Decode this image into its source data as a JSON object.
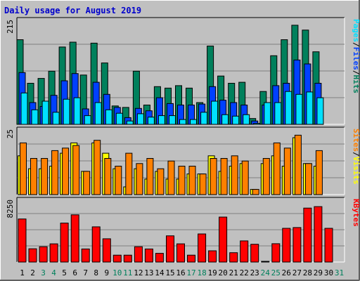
{
  "chart_data": {
    "type": "bar",
    "title": "Daily usage for August 2019",
    "colors": {
      "page_bg": "#c0c0c0",
      "plot_bg": "#c0c0c0",
      "hits": "#00805c",
      "files": "#0040ff",
      "pages": "#00e0ff",
      "visits": "#ffff00",
      "sites": "#ff8000",
      "kbytes": "#ff0000",
      "weekend_label": "#00805c",
      "weekday_label": "#000000"
    },
    "days": [
      "1",
      "2",
      "3",
      "4",
      "5",
      "6",
      "7",
      "8",
      "9",
      "10",
      "11",
      "12",
      "13",
      "14",
      "15",
      "16",
      "17",
      "18",
      "19",
      "20",
      "21",
      "22",
      "23",
      "24",
      "25",
      "26",
      "27",
      "28",
      "29",
      "30",
      "31"
    ],
    "weekend_days": [
      "3",
      "4",
      "10",
      "11",
      "17",
      "18",
      "24",
      "25",
      "31"
    ],
    "panels": [
      {
        "id": "hits",
        "ymax_label": "215",
        "ymax": 215,
        "legend": [
          {
            "text": "Hits",
            "color": "#00805c"
          },
          {
            "text": "/",
            "color": "#000000"
          },
          {
            "text": "Files",
            "color": "#0040ff"
          },
          {
            "text": "/",
            "color": "#000000"
          },
          {
            "text": "Pages",
            "color": "#00e0ff"
          }
        ],
        "series": [
          {
            "name": "Hits",
            "color": "#00805c",
            "values": [
              175,
              85,
              95,
              110,
              160,
              170,
              102,
              168,
              127,
              38,
              35,
              110,
              40,
              78,
              75,
              80,
              75,
              45,
              162,
              100,
              85,
              87,
              12,
              68,
              142,
              175,
              205,
              195,
              150,
              null,
              null
            ]
          },
          {
            "name": "Files",
            "color": "#0040ff",
            "values": [
              107,
              45,
              37,
              60,
              90,
              105,
              32,
              87,
              62,
              35,
              14,
              33,
              28,
              55,
              43,
              40,
              40,
              42,
              78,
              50,
              45,
              40,
              7,
              40,
              80,
              85,
              133,
              125,
              85,
              null,
              null
            ]
          },
          {
            "name": "Pages",
            "color": "#00e0ff",
            "values": [
              65,
              30,
              48,
              25,
              52,
              55,
              18,
              45,
              30,
              23,
              7,
              22,
              15,
              18,
              18,
              10,
              10,
              25,
              48,
              20,
              17,
              20,
              2,
              45,
              45,
              68,
              62,
              67,
              55,
              null,
              null
            ]
          }
        ]
      },
      {
        "id": "visits",
        "ymax_label": "25",
        "ymax": 25,
        "legend": [
          {
            "text": "Visits",
            "color": "#ffff00"
          },
          {
            "text": "/",
            "color": "#000000"
          },
          {
            "text": "Sites",
            "color": "#ff8000"
          }
        ],
        "series": [
          {
            "name": "Visits",
            "color": "#ffff00",
            "values": [
              15,
              10,
              10,
              11,
              16,
              20,
              9,
              20,
              16,
              10,
              3,
              10,
              6,
              9,
              6,
              6,
              8,
              8,
              15,
              9,
              11,
              12,
              2,
              12,
              15,
              11,
              22,
              12,
              11,
              null,
              null
            ]
          },
          {
            "name": "Sites",
            "color": "#ff8000",
            "values": [
              20,
              14,
              14,
              17,
              18,
              19,
              9,
              21,
              14,
              11,
              16,
              12,
              14,
              10,
              13,
              11,
              11,
              8,
              14,
              14,
              15,
              13,
              2,
              14,
              20,
              18,
              23,
              12,
              17,
              null,
              null
            ]
          }
        ]
      },
      {
        "id": "kbytes",
        "ymax_label": "8250",
        "ymax": 8250,
        "legend": [
          {
            "text": "KBytes",
            "color": "#ff0000"
          }
        ],
        "series": [
          {
            "name": "KBytes",
            "color": "#ff0000",
            "values": [
              5750,
              1770,
              2040,
              2430,
              5200,
              6300,
              1740,
              4700,
              3100,
              920,
              920,
              2040,
              1740,
              1160,
              3500,
              2430,
              920,
              3750,
              1500,
              6000,
              1250,
              2820,
              2370,
              20,
              2450,
              4500,
              4600,
              7200,
              7400,
              4500,
              null
            ]
          }
        ]
      }
    ]
  }
}
